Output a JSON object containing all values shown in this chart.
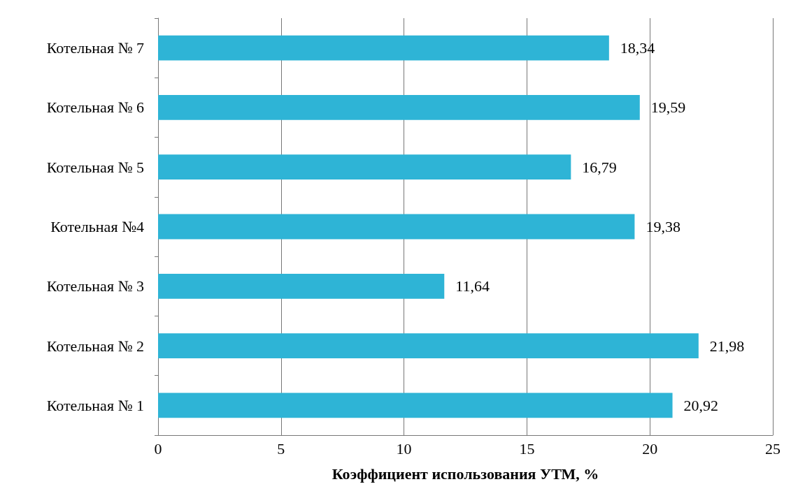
{
  "chart_data": {
    "type": "bar",
    "orientation": "horizontal",
    "xlabel": "Коэффициент использования УТМ, %",
    "categories": [
      "Котельная № 7",
      "Котельная № 6",
      "Котельная № 5",
      "Котельная №4",
      "Котельная № 3",
      "Котельная № 2",
      "Котельная № 1"
    ],
    "values": [
      18.34,
      19.59,
      16.79,
      19.38,
      11.64,
      21.98,
      20.92
    ],
    "value_labels": [
      "18,34",
      "19,59",
      "16,79",
      "19,38",
      "11,64",
      "21,98",
      "20,92"
    ],
    "color": "#2eb4d6",
    "xlim": [
      0,
      25
    ],
    "xticks": [
      0,
      5,
      10,
      15,
      20,
      25
    ],
    "grid": "x"
  }
}
